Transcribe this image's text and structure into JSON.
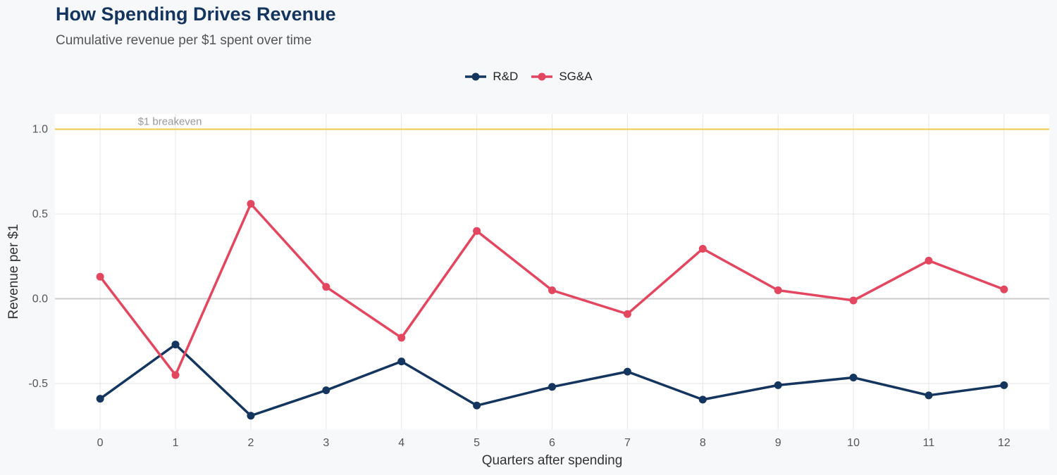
{
  "title": "How Spending Drives Revenue",
  "subtitle": "Cumulative revenue per $1 spent over time",
  "chart_data": {
    "type": "line",
    "title": "How Spending Drives Revenue",
    "subtitle": "Cumulative revenue per $1 spent over time",
    "xlabel": "Quarters after spending",
    "ylabel": "Revenue per $1",
    "x": [
      0,
      1,
      2,
      3,
      4,
      5,
      6,
      7,
      8,
      9,
      10,
      11,
      12
    ],
    "xticks": [
      "0",
      "1",
      "2",
      "3",
      "4",
      "5",
      "6",
      "7",
      "8",
      "9",
      "10",
      "11",
      "12"
    ],
    "yticks": [
      "-0.5",
      "0.0",
      "0.5",
      "1.0"
    ],
    "ytick_values": [
      -0.5,
      0.0,
      0.5,
      1.0
    ],
    "ylim": [
      -0.77,
      1.09
    ],
    "xlim": [
      -0.6,
      12.6
    ],
    "series": [
      {
        "name": "R&D",
        "color": "#14355e",
        "values": [
          -0.59,
          -0.27,
          -0.69,
          -0.54,
          -0.37,
          -0.63,
          -0.52,
          -0.43,
          -0.595,
          -0.51,
          -0.465,
          -0.57,
          -0.51
        ]
      },
      {
        "name": "SG&A",
        "color": "#e3465f",
        "values": [
          0.13,
          -0.45,
          0.56,
          0.07,
          -0.23,
          0.4,
          0.05,
          -0.09,
          0.295,
          0.05,
          -0.01,
          0.225,
          0.055
        ]
      }
    ],
    "reference_lines": [
      {
        "y": 1.0,
        "label": "$1 breakeven",
        "color": "#f2c94c"
      },
      {
        "y": 0.0,
        "label": "",
        "color": "#cccccc"
      }
    ],
    "legend": "top-center",
    "grid": true
  }
}
